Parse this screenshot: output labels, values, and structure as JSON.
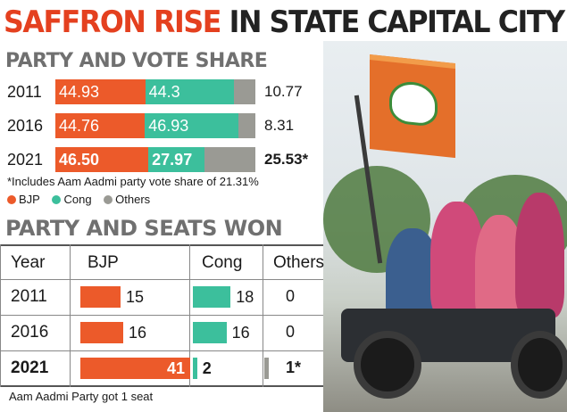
{
  "header": {
    "title_part1": "SAFFRON RISE",
    "title_part2": "IN STATE CAPITAL CITY"
  },
  "colors": {
    "bjp": "#ec5a2a",
    "cong": "#3cbf9c",
    "others": "#9a9a94",
    "title_accent": "#e4401f"
  },
  "chart_data": [
    {
      "type": "bar",
      "title": "PARTY AND VOTE SHARE",
      "stacked": true,
      "categories": [
        "2011",
        "2016",
        "2021"
      ],
      "series": [
        {
          "name": "BJP",
          "values": [
            44.93,
            44.76,
            46.5
          ],
          "labels": [
            "44.93",
            "44.76",
            "46.50"
          ]
        },
        {
          "name": "Cong",
          "values": [
            44.3,
            46.93,
            27.97
          ],
          "labels": [
            "44.3",
            "46.93",
            "27.97"
          ]
        },
        {
          "name": "Others",
          "values": [
            10.77,
            8.31,
            25.53
          ],
          "labels": [
            "10.77",
            "8.31",
            "25.53*"
          ]
        }
      ],
      "footnote": "*Includes Aam Aadmi party vote share of 21.31%",
      "legend": [
        "BJP",
        "Cong",
        "Others"
      ],
      "legend_position": "bottom-left"
    },
    {
      "type": "table",
      "title": "PARTY AND SEATS WON",
      "columns": [
        "Year",
        "BJP",
        "Cong",
        "Others"
      ],
      "rows": [
        {
          "year": "2011",
          "bjp": 15,
          "cong": 18,
          "others": "0"
        },
        {
          "year": "2016",
          "bjp": 16,
          "cong": 16,
          "others": "0"
        },
        {
          "year": "2021",
          "bjp": 41,
          "cong": 2,
          "others": "1*"
        }
      ],
      "footnote": "Aam Aadmi Party got 1 seat"
    }
  ]
}
